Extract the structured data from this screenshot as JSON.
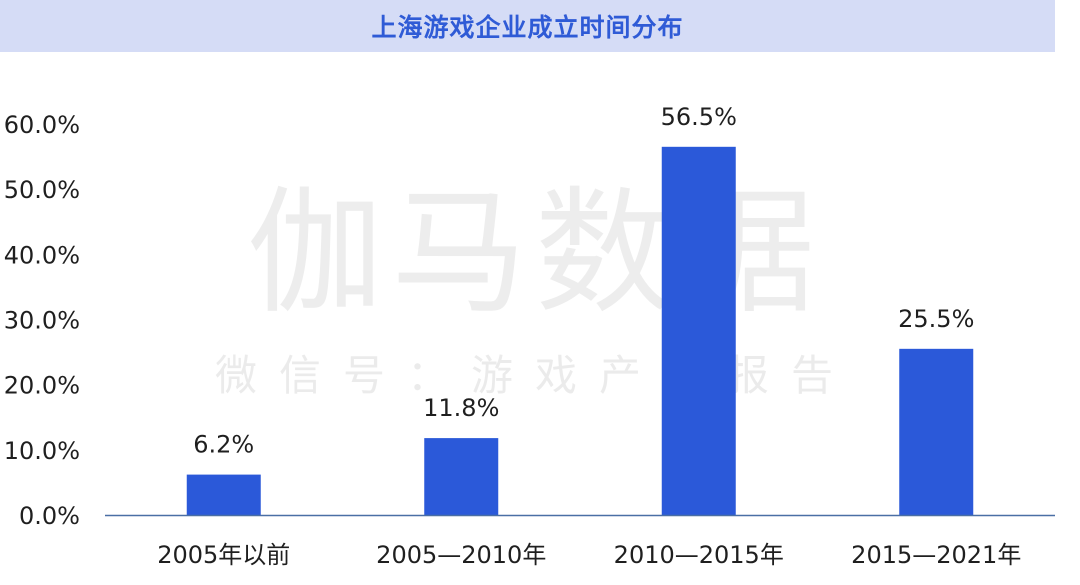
{
  "title": "上海游戏企业成立时间分布",
  "watermark": {
    "main": "伽马数据",
    "sub": "微信号：游戏产业报告"
  },
  "colors": {
    "bar": "#2b59d9",
    "title_bg": "#d5dcf6",
    "title_text": "#2f5bd6",
    "axis_line": "#4a6fa5"
  },
  "chart_data": {
    "type": "bar",
    "title": "上海游戏企业成立时间分布",
    "categories": [
      "2005年以前",
      "2005—2010年",
      "2010—2015年",
      "2015—2021年"
    ],
    "values": [
      6.2,
      11.8,
      56.5,
      25.5
    ],
    "value_labels": [
      "6.2%",
      "11.8%",
      "56.5%",
      "25.5%"
    ],
    "ylim": [
      0,
      60
    ],
    "yticks": [
      0,
      10,
      20,
      30,
      40,
      50,
      60
    ],
    "ytick_labels": [
      "0.0%",
      "10.0%",
      "20.0%",
      "30.0%",
      "40.0%",
      "50.0%",
      "60.0%"
    ],
    "grid": false,
    "legend": "none"
  }
}
